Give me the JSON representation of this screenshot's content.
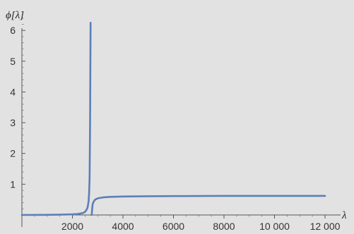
{
  "chart_data": {
    "type": "line",
    "title": "",
    "xlabel": "λ",
    "ylabel": "ϕ[λ]",
    "xlim": [
      0,
      12000
    ],
    "ylim": [
      0,
      6.6
    ],
    "x_ticks": [
      2000,
      4000,
      6000,
      8000,
      10000,
      12000
    ],
    "x_tick_labels": [
      "2000",
      "4000",
      "6000",
      "8000",
      "10 000",
      "12 000"
    ],
    "y_ticks": [
      1,
      2,
      3,
      4,
      5,
      6
    ],
    "y_tick_labels": [
      "1",
      "2",
      "3",
      "4",
      "5",
      "6"
    ],
    "grid": false,
    "series": [
      {
        "color": "#5b7fb8",
        "segments": [
          {
            "x": [
              0,
              1000,
              1500,
              2000,
              2200,
              2400,
              2500,
              2560,
              2600,
              2640,
              2660,
              2680,
              2700,
              2720
            ],
            "y": [
              0.0,
              0.005,
              0.01,
              0.02,
              0.03,
              0.06,
              0.1,
              0.17,
              0.25,
              0.45,
              0.7,
              1.2,
              3.0,
              6.25
            ]
          },
          {
            "x": [
              2760,
              2800,
              2850,
              2900,
              3000,
              3200,
              3500,
              4000,
              5000,
              6000,
              8000,
              10000,
              12000
            ],
            "y": [
              0.0,
              0.35,
              0.45,
              0.5,
              0.54,
              0.57,
              0.59,
              0.6,
              0.61,
              0.615,
              0.62,
              0.62,
              0.62
            ]
          }
        ]
      }
    ]
  }
}
